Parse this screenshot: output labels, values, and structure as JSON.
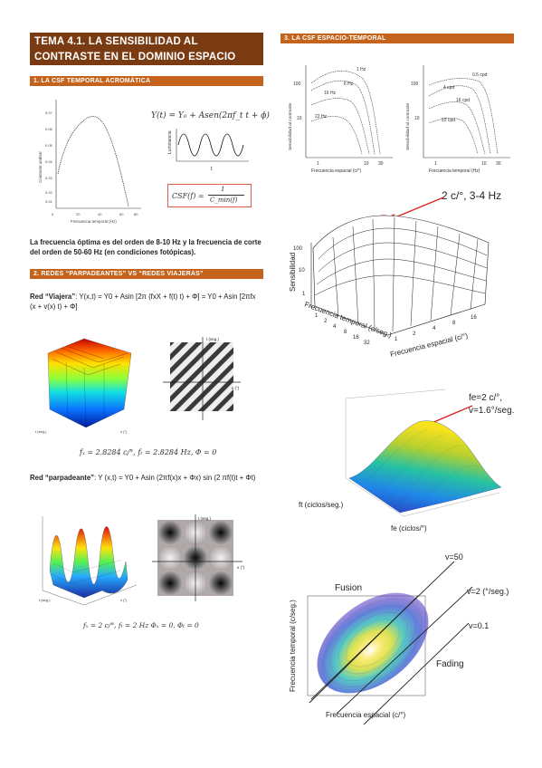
{
  "header": {
    "title": "TEMA 4.1. LA SENSIBILIDAD AL CONTRASTE EN EL DOMINIO ESPACIO TEMPORAL"
  },
  "section1": {
    "label": "1. LA CSF TEMPORAL ACROMÁTICA",
    "formula1": "Y(t) = Y₀ + Asen(2πf_t t + ϕ)",
    "formula2_lhs": "CSF(f) =",
    "formula2_num": "1",
    "formula2_den": "C_min(f)",
    "ylabel": "Contraste umbral",
    "xlabel": "Frecuencia temporal (Hz)",
    "yticks": [
      "0.07",
      "0.06",
      "0.05",
      "0.04",
      "0.03",
      "0.02",
      "0.01",
      "0"
    ],
    "xticks": [
      "0",
      "20",
      "40",
      "60",
      "80"
    ],
    "wave_label_y": "Luminancia",
    "wave_label_x": "t",
    "text": "La frecuencia óptima es del orden de 8-10 Hz y la frecuencia de corte del orden de 50-60 Hz (en condiciones fotópicas)."
  },
  "section2": {
    "label": "2. REDES “PARPADEANTES” VS “REDES VIAJERAS”",
    "viajera_bold": "Red “Viajera”",
    "viajera_text": ": Y(x,t) = Y0 + Asin [2π (fxX + f(t) t) + Φ] = Y0 + Asin [2πfx (x + v(x) t) + Φ]",
    "viajera_caption": "fₓ = 2.8284 c/°, fₜ = 2.8284 Hz, Φ = 0",
    "parpadeante_bold": "Red “parpadeante”",
    "parpadeante_text": ": Y (x,t) = Y0 + Asin (2πf(x)x + Φx) sin (2 πf(t)t + Φt)",
    "parpadeante_caption": "fₓ = 2 c/°, fₜ = 2 Hz Φₓ = 0, Φₜ = 0",
    "axis_t": "t (seg.)",
    "axis_x": "x (°)"
  },
  "section3": {
    "label": "3. LA CSF ESPACIO-TEMPORAL",
    "small_left": {
      "ylabel": "Sensibilidad al contraste",
      "xlabel": "Frecuencia espacial (c/°)",
      "curves": [
        "1 Hz",
        "6 Hz",
        "16 Hz",
        "22 Hz"
      ],
      "xticks": [
        "1",
        "10",
        "30"
      ],
      "yticks": [
        "100",
        "10"
      ]
    },
    "small_right": {
      "ylabel": "Sensibilidad al contraste",
      "xlabel": "Frecuencia temporal (Hz)",
      "curves": [
        "0.5 cpd",
        "4 cpd",
        "16 cpd",
        "22 cpd"
      ],
      "xticks": [
        "1",
        "10",
        "30"
      ],
      "yticks": [
        "100",
        "10"
      ]
    },
    "surface": {
      "annotation": "2 c/°, 3-4 Hz",
      "zlabel": "Sensibilidad",
      "zticks": [
        "100",
        "10",
        "1"
      ],
      "xlabel": "Frecuencia temporal (c/seg.)",
      "ylabel": "Frecuencia espacial (c/°)",
      "xticks": [
        "1",
        "2",
        "4",
        "8",
        "16",
        "32"
      ],
      "yticks": [
        "1",
        "2",
        "4",
        "8",
        "16"
      ]
    },
    "colored_surface": {
      "annotation_line1": "fe=2 c/°,",
      "annotation_line2": "v=1.6°/seg.",
      "xlabel": "ft (ciclos/seg.)",
      "ylabel": "fe (ciclos/°)"
    },
    "contour": {
      "ylabel": "Frecuencia temporal (c/seg.)",
      "xlabel": "Frecuencia espacial (c/°)",
      "label_fusion": "Fusion",
      "label_fading": "Fading",
      "v1": "v=50",
      "v2": "v=2 (°/seg.)",
      "v3": "v=0.1"
    }
  }
}
